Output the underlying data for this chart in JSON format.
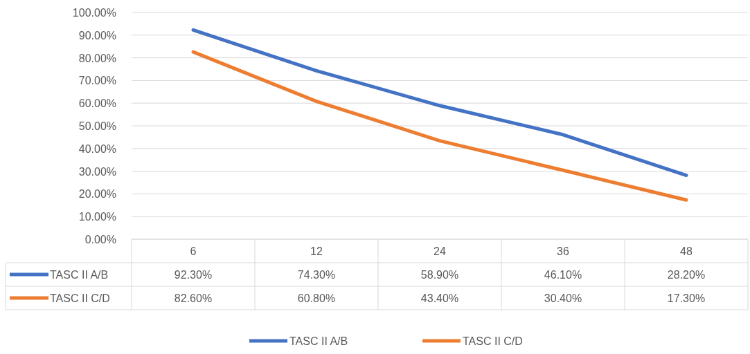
{
  "chart_data": {
    "type": "line",
    "categories": [
      "6",
      "12",
      "24",
      "36",
      "48"
    ],
    "series": [
      {
        "name": "TASC II A/B",
        "color": "#4472c4",
        "values": [
          92.3,
          74.3,
          58.9,
          46.1,
          28.2
        ],
        "value_labels": [
          "92.30%",
          "74.30%",
          "58.90%",
          "46.10%",
          "28.20%"
        ]
      },
      {
        "name": "TASC II C/D",
        "color": "#ed7d31",
        "values": [
          82.6,
          60.8,
          43.4,
          30.4,
          17.3
        ],
        "value_labels": [
          "82.60%",
          "60.80%",
          "43.40%",
          "30.40%",
          "17.30%"
        ]
      }
    ],
    "ylim": [
      0,
      100
    ],
    "yticks": [
      {
        "value": 0,
        "label": "0.00%"
      },
      {
        "value": 10,
        "label": "10.00%"
      },
      {
        "value": 20,
        "label": "20.00%"
      },
      {
        "value": 30,
        "label": "30.00%"
      },
      {
        "value": 40,
        "label": "40.00%"
      },
      {
        "value": 50,
        "label": "50.00%"
      },
      {
        "value": 60,
        "label": "60.00%"
      },
      {
        "value": 70,
        "label": "70.00%"
      },
      {
        "value": 80,
        "label": "80.00%"
      },
      {
        "value": 90,
        "label": "90.00%"
      },
      {
        "value": 100,
        "label": "100.00%"
      }
    ],
    "grid": "y",
    "legend": "bottom"
  }
}
